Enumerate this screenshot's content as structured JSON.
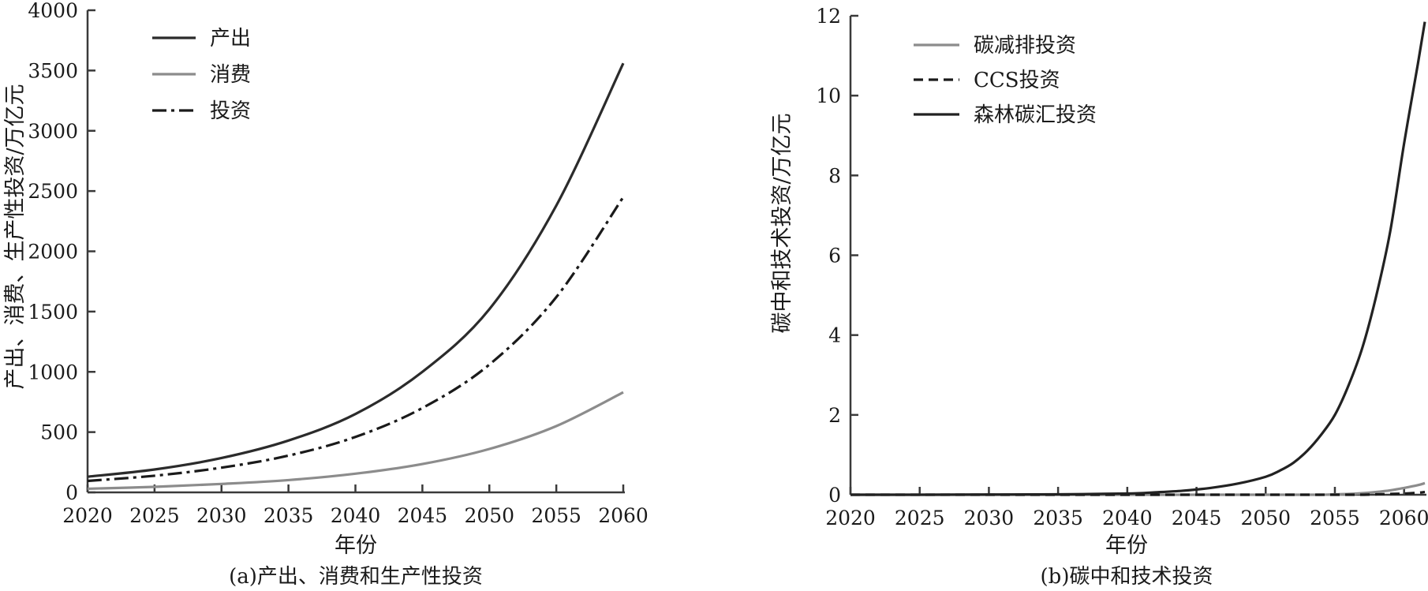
{
  "chart_data": [
    {
      "type": "line",
      "caption": "(a)产出、消费和生产性投资",
      "xlabel": "年份",
      "ylabel": "产出、消费、生产性投资/万亿元",
      "x_ticks": [
        2020,
        2025,
        2030,
        2035,
        2040,
        2045,
        2050,
        2055,
        2060
      ],
      "y_ticks": [
        0,
        500,
        1000,
        1500,
        2000,
        2500,
        3000,
        3500,
        4000
      ],
      "xlim": [
        2020,
        2060
      ],
      "ylim": [
        0,
        4000
      ],
      "x": [
        2020,
        2025,
        2030,
        2035,
        2040,
        2045,
        2050,
        2055,
        2060
      ],
      "series": [
        {
          "name": "产出",
          "color": "#2b2b2b",
          "dash": "solid",
          "values": [
            130,
            190,
            285,
            430,
            650,
            1000,
            1520,
            2380,
            3560
          ]
        },
        {
          "name": "消费",
          "color": "#8c8c8c",
          "dash": "solid",
          "values": [
            30,
            46,
            70,
            102,
            155,
            235,
            360,
            550,
            830
          ]
        },
        {
          "name": "投资",
          "color": "#1a1a1a",
          "dash": "dashdot",
          "values": [
            95,
            138,
            205,
            305,
            460,
            700,
            1060,
            1620,
            2450
          ]
        }
      ],
      "legend_position": "top-left"
    },
    {
      "type": "line",
      "caption": "(b)碳中和技术投资",
      "xlabel": "年份",
      "ylabel": "碳中和技术投资/万亿元",
      "x_ticks": [
        2020,
        2025,
        2030,
        2035,
        2040,
        2045,
        2050,
        2055,
        2060
      ],
      "y_ticks": [
        0,
        2,
        4,
        6,
        8,
        10,
        12
      ],
      "xlim": [
        2020,
        2061.5
      ],
      "ylim": [
        0,
        12
      ],
      "x": [
        2020,
        2025,
        2030,
        2035,
        2040,
        2042,
        2044,
        2046,
        2048,
        2050,
        2051,
        2052,
        2053,
        2054,
        2055,
        2056,
        2057,
        2058,
        2059,
        2060,
        2061,
        2061.5
      ],
      "series": [
        {
          "name": "碳减排投资",
          "color": "#8c8c8c",
          "dash": "solid",
          "values": [
            0,
            0,
            0,
            0,
            0,
            0,
            0,
            0,
            0,
            0,
            0,
            0,
            0,
            0,
            0.01,
            0.02,
            0.04,
            0.07,
            0.11,
            0.17,
            0.24,
            0.29
          ]
        },
        {
          "name": "CCS投资",
          "color": "#1a1a1a",
          "dash": "dashed",
          "values": [
            0,
            0,
            0,
            0,
            0,
            0,
            0,
            0,
            0,
            0,
            0,
            0,
            0,
            0,
            0,
            0,
            0,
            0.01,
            0.02,
            0.03,
            0.05,
            0.07
          ]
        },
        {
          "name": "森林碳汇投资",
          "color": "#222222",
          "dash": "solid",
          "values": [
            0,
            0,
            0.005,
            0.01,
            0.03,
            0.06,
            0.1,
            0.17,
            0.28,
            0.45,
            0.6,
            0.8,
            1.1,
            1.5,
            2.0,
            2.75,
            3.7,
            5.0,
            6.6,
            8.8,
            10.8,
            11.85
          ]
        }
      ],
      "legend_position": "top-left"
    }
  ]
}
